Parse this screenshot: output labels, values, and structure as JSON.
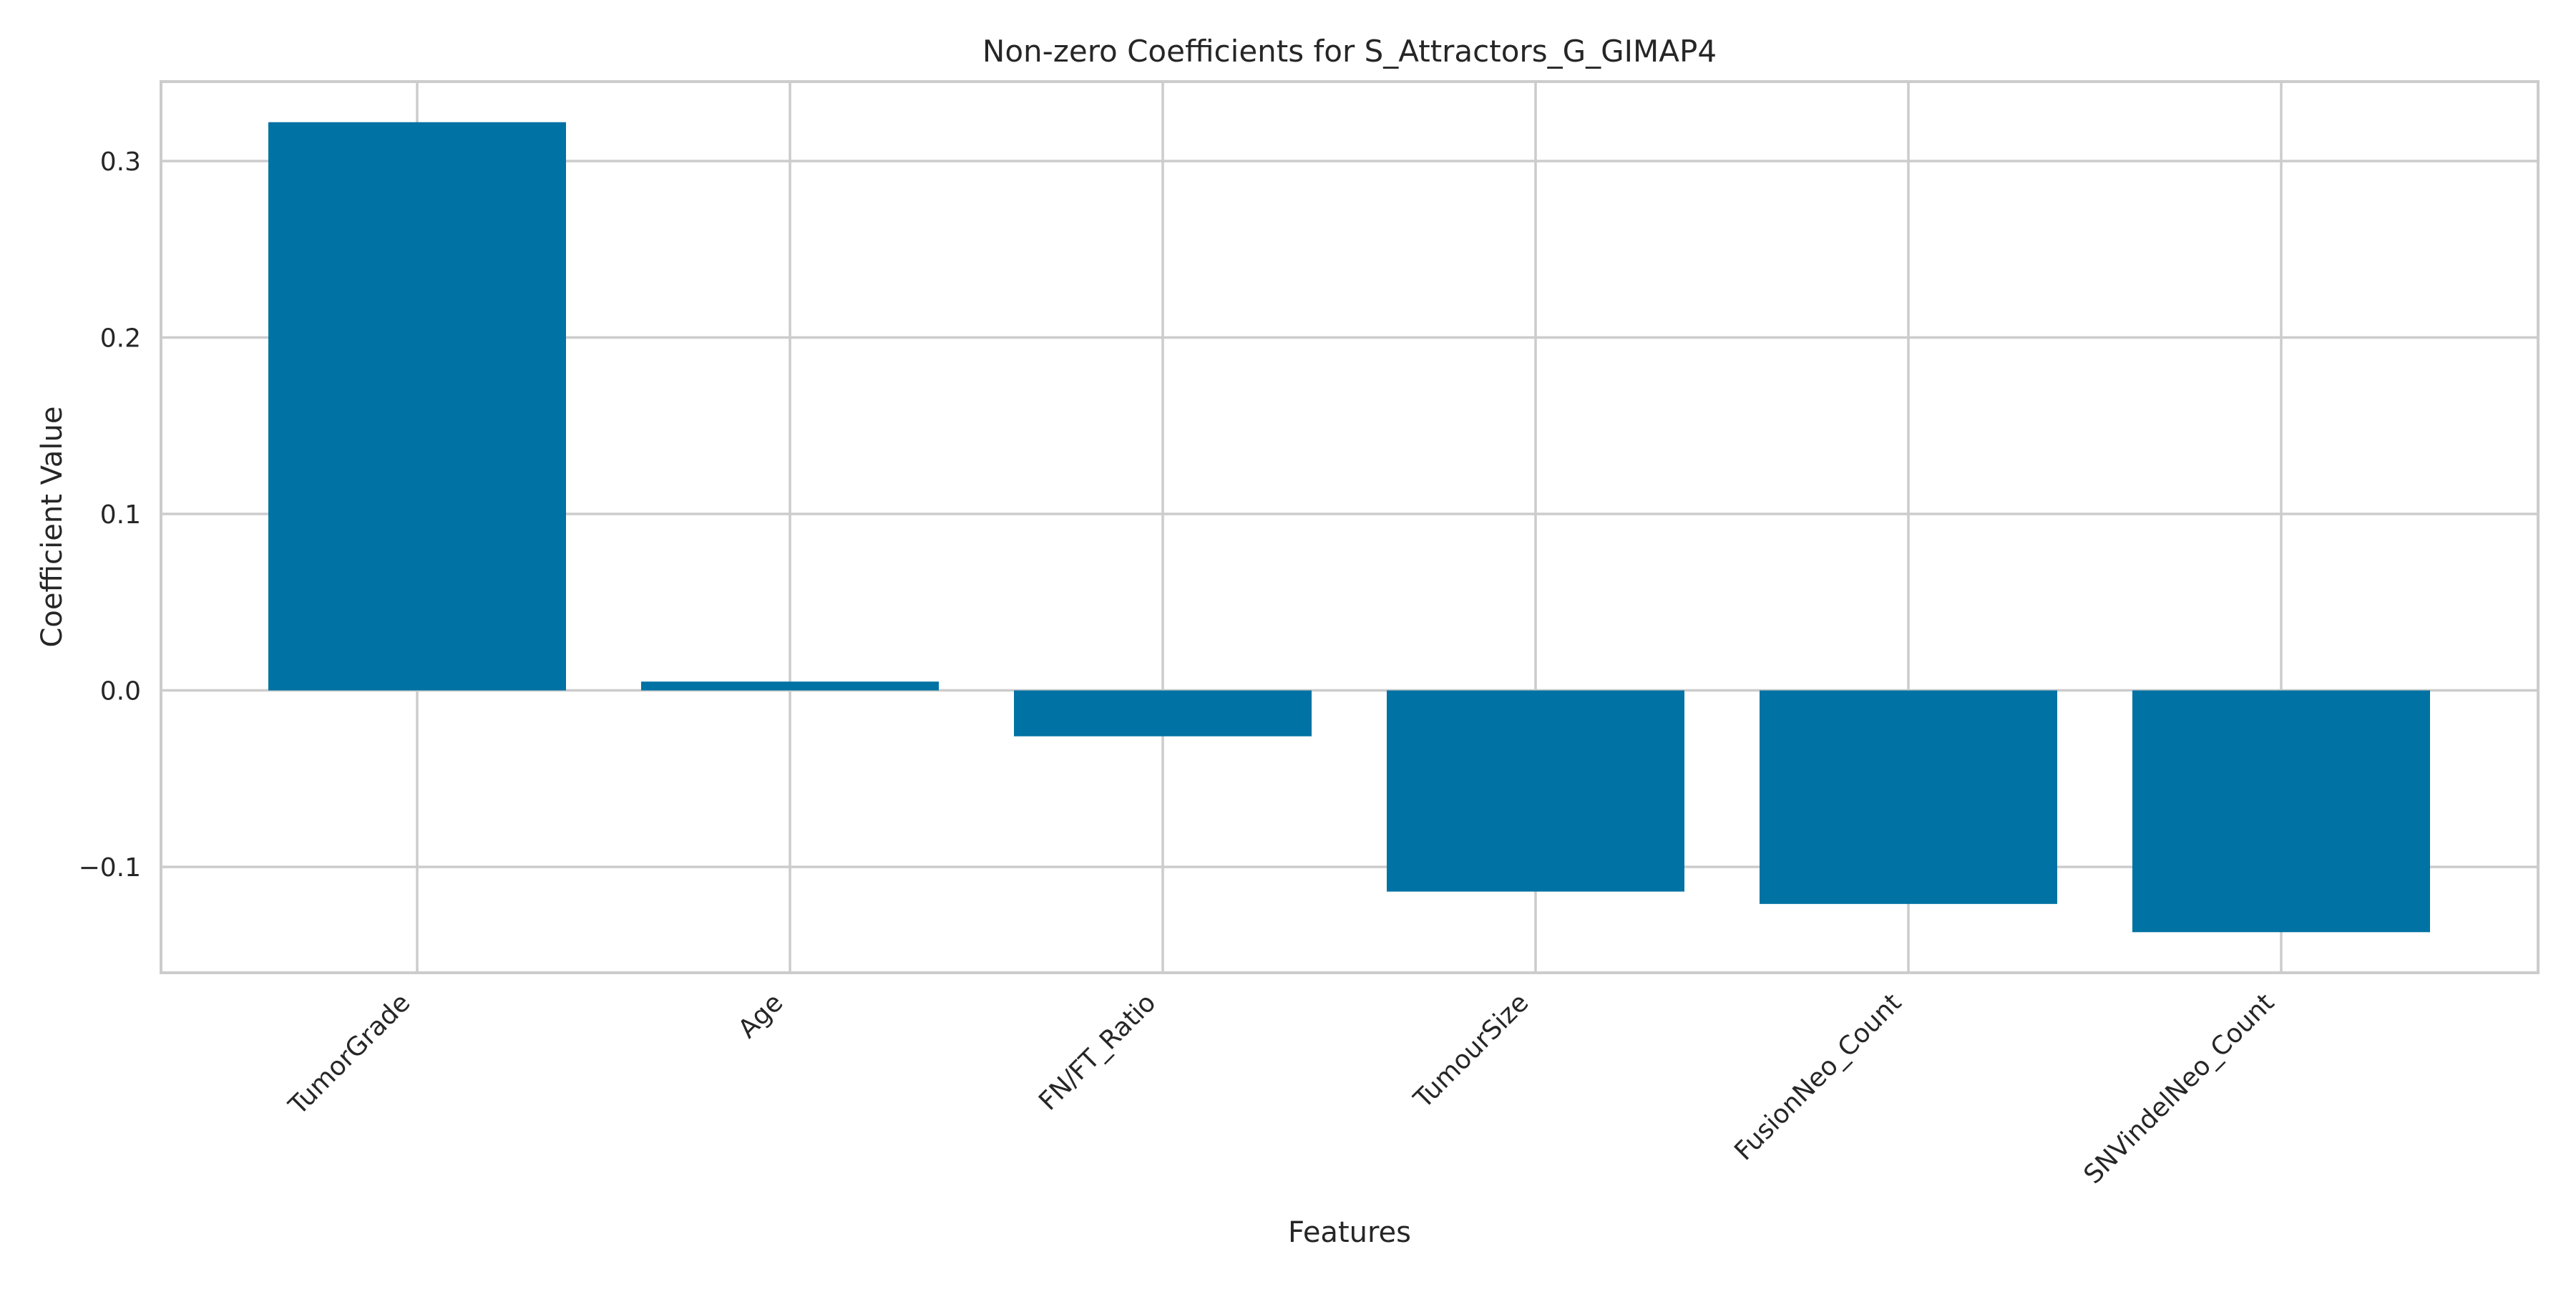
{
  "chart_data": {
    "type": "bar",
    "title": "Non-zero Coefficients for S_Attractors_G_GIMAP4",
    "xlabel": "Features",
    "ylabel": "Coefficient Value",
    "categories": [
      "TumorGrade",
      "Age",
      "FN/FT_Ratio",
      "TumourSize",
      "FusionNeo_Count",
      "SNVindelNeo_Count"
    ],
    "values": [
      0.322,
      0.005,
      -0.026,
      -0.114,
      -0.121,
      -0.137
    ],
    "ylim": [
      -0.16,
      0.345
    ],
    "yticks": [
      -0.1,
      0.0,
      0.1,
      0.2,
      0.3
    ],
    "ytick_labels": [
      "−0.1",
      "0.0",
      "0.1",
      "0.2",
      "0.3"
    ],
    "grid": true,
    "bar_color": "#0072a3",
    "grid_color": "#cccccc"
  }
}
